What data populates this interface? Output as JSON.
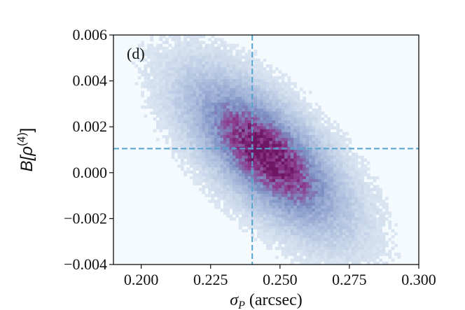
{
  "chart_data": {
    "type": "heatmap",
    "panel_label": "(d)",
    "xlabel_symbol": "σ",
    "xlabel_subscript": "P",
    "xlabel_unit": " (arcsec)",
    "ylabel_base": "B[ρ",
    "ylabel_superscript": "(4)",
    "ylabel_close": "]",
    "xlim": [
      0.19,
      0.3
    ],
    "ylim": [
      -0.004,
      0.006
    ],
    "xticks": [
      {
        "value": 0.2,
        "label": "0.200"
      },
      {
        "value": 0.225,
        "label": "0.225"
      },
      {
        "value": 0.25,
        "label": "0.250"
      },
      {
        "value": 0.275,
        "label": "0.275"
      },
      {
        "value": 0.3,
        "label": "0.300"
      }
    ],
    "yticks": [
      {
        "value": -0.004,
        "label": "−0.004"
      },
      {
        "value": -0.002,
        "label": "−0.002"
      },
      {
        "value": 0.0,
        "label": "0.000"
      },
      {
        "value": 0.002,
        "label": "0.002"
      },
      {
        "value": 0.004,
        "label": "0.004"
      },
      {
        "value": 0.006,
        "label": "0.006"
      }
    ],
    "reference_lines": {
      "vertical_x": 0.24,
      "horizontal_y": 0.00105
    },
    "density_center": [
      0.245,
      0.0008
    ],
    "density_spread": [
      0.011,
      0.0013
    ],
    "density_correlation": -0.68,
    "grid": false,
    "colors": {
      "background": "#f4fafd",
      "low": "#b7c8e2",
      "mid": "#7d90c4",
      "high": "#8e3c8e",
      "peak": "#6e1563",
      "reference_line": "#55a4cf"
    }
  }
}
